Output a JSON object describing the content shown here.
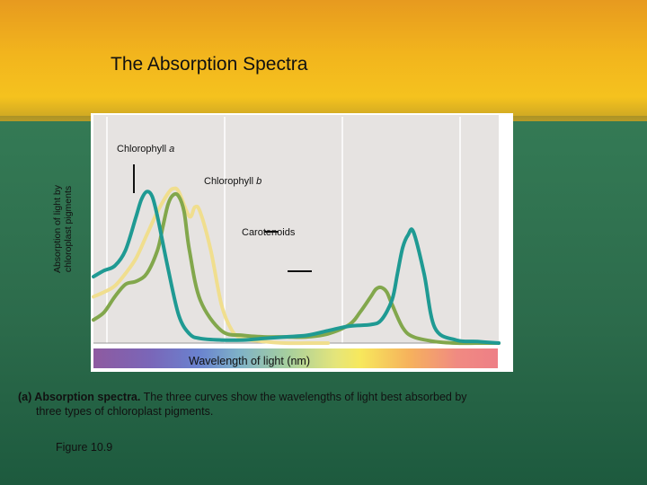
{
  "slide": {
    "title": "The Absorption Spectra",
    "caption_bold": "(a) Absorption spectra.",
    "caption_line1": "The three curves show the wavelengths of light best  absorbed by",
    "caption_line2": "three types of chloroplast pigments.",
    "figure_number": "Figure 10.9"
  },
  "chart_data": {
    "type": "line",
    "xlabel": "Wavelength of light (nm)",
    "ylabel_line1": "Absorption of light by",
    "ylabel_line2": "chloroplast pigments",
    "xlim": [
      380,
      760
    ],
    "ylim": [
      0,
      1
    ],
    "series": [
      {
        "name_main": "Chlorophyll ",
        "name_italic": "a",
        "color": "#1f9a93",
        "x": [
          380,
          390,
          400,
          410,
          420,
          425,
          430,
          435,
          440,
          450,
          460,
          470,
          480,
          500,
          520,
          540,
          560,
          580,
          600,
          620,
          640,
          650,
          660,
          665,
          670,
          675,
          680,
          690,
          700,
          720,
          740,
          760
        ],
        "y": [
          0.43,
          0.47,
          0.5,
          0.6,
          0.82,
          0.93,
          0.98,
          0.95,
          0.82,
          0.48,
          0.18,
          0.06,
          0.03,
          0.02,
          0.02,
          0.03,
          0.04,
          0.05,
          0.08,
          0.11,
          0.12,
          0.15,
          0.28,
          0.45,
          0.62,
          0.7,
          0.72,
          0.45,
          0.1,
          0.02,
          0.01,
          0.0
        ]
      },
      {
        "name_main": "Chlorophyll ",
        "name_italic": "b",
        "color": "#82a74c",
        "x": [
          380,
          390,
          400,
          410,
          420,
          430,
          440,
          445,
          450,
          455,
          460,
          465,
          470,
          480,
          500,
          520,
          540,
          560,
          580,
          600,
          620,
          630,
          640,
          645,
          650,
          655,
          660,
          670,
          680,
          700,
          720,
          740,
          760
        ],
        "y": [
          0.15,
          0.2,
          0.3,
          0.38,
          0.4,
          0.45,
          0.6,
          0.75,
          0.9,
          0.96,
          0.95,
          0.85,
          0.6,
          0.28,
          0.08,
          0.05,
          0.04,
          0.04,
          0.04,
          0.06,
          0.12,
          0.2,
          0.3,
          0.35,
          0.36,
          0.33,
          0.25,
          0.1,
          0.04,
          0.01,
          0.0,
          0.0,
          0.0
        ]
      },
      {
        "name_main": "Carotenoids",
        "name_italic": "",
        "color": "#f0de8e",
        "x": [
          380,
          390,
          400,
          410,
          420,
          430,
          440,
          450,
          455,
          460,
          470,
          475,
          480,
          490,
          500,
          510,
          520,
          540,
          560,
          580,
          600
        ],
        "y": [
          0.3,
          0.33,
          0.37,
          0.45,
          0.55,
          0.7,
          0.85,
          0.97,
          1.0,
          0.98,
          0.82,
          0.88,
          0.85,
          0.6,
          0.25,
          0.08,
          0.03,
          0.01,
          0.0,
          0.0,
          0.0
        ]
      }
    ],
    "grid": "vertical lines"
  }
}
